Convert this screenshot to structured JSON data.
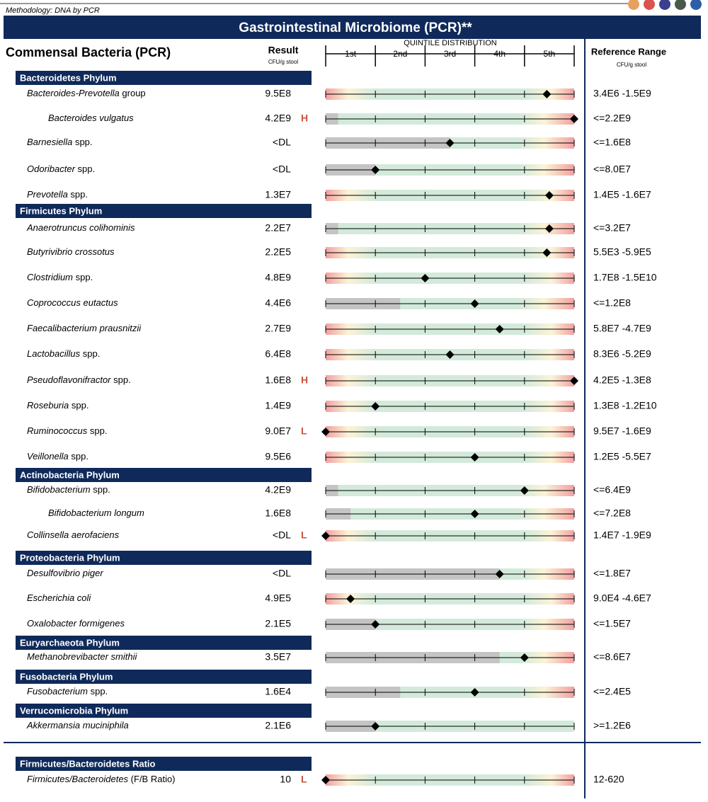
{
  "methodology": "Methodology: DNA by PCR",
  "title": "Gastrointestinal Microbiome (PCR)**",
  "panel_title": "Commensal Bacteria (PCR)",
  "result_header": "Result",
  "result_unit": "CFU/g stool",
  "quintile_header": "QUINTILE DISTRIBUTION",
  "quintiles": [
    "1st",
    "2nd",
    "3rd",
    "4th",
    "5th"
  ],
  "range_header": "Reference Range",
  "range_unit": "CFU/g stool",
  "dot_colors": [
    "#e8a060",
    "#d9534f",
    "#3a3f8f",
    "#4a5a4a",
    "#2d5fa8"
  ],
  "sections": [
    {
      "title": "Bacteroidetes Phylum",
      "rows": [
        {
          "name": "Bacteroides-Prevotella",
          "suffix": " group",
          "result": "9.5E8",
          "range": "3.4E6 -1.5E9",
          "scale": "range",
          "position": 4.45
        },
        {
          "name": "Bacteroides vulgatus",
          "indent": true,
          "result": "4.2E9",
          "flag": "H",
          "range": "<=2.2E9",
          "scale": "upper",
          "position": 5,
          "gray": 0.25
        },
        {
          "name": "Barnesiella",
          "suffix": " spp.",
          "result": "<DL",
          "range": "<=1.6E8",
          "scale": "upper",
          "position": 2.5,
          "gray": 2.5
        },
        {
          "name": "Odoribacter",
          "suffix": " spp.",
          "result": "<DL",
          "range": "<=8.0E7",
          "scale": "upper",
          "position": 1,
          "gray": 1
        },
        {
          "name": "Prevotella",
          "suffix": " spp.",
          "result": "1.3E7",
          "range": "1.4E5 -1.6E7",
          "scale": "range",
          "position": 4.5
        }
      ]
    },
    {
      "title": "Firmicutes Phylum",
      "rows": [
        {
          "name": "Anaerotruncus colihominis",
          "result": "2.2E7",
          "range": "<=3.2E7",
          "scale": "upper",
          "position": 4.5,
          "gray": 0.25
        },
        {
          "name": "Butyrivibrio crossotus",
          "result": "2.2E5",
          "range": "5.5E3 -5.9E5",
          "scale": "range",
          "position": 4.45
        },
        {
          "name": "Clostridium",
          "suffix": " spp.",
          "result": "4.8E9",
          "range": "1.7E8 -1.5E10",
          "scale": "range",
          "position": 2
        },
        {
          "name": "Coprococcus eutactus",
          "result": "4.4E6",
          "range": "<=1.2E8",
          "scale": "upper",
          "position": 3,
          "gray": 1.5
        },
        {
          "name": "Faecalibacterium prausnitzii",
          "result": "2.7E9",
          "range": "5.8E7 -4.7E9",
          "scale": "range",
          "position": 3.5
        },
        {
          "name": "Lactobacillus",
          "suffix": " spp.",
          "result": "6.4E8",
          "range": "8.3E6 -5.2E9",
          "scale": "range",
          "position": 2.5
        },
        {
          "name": "Pseudoflavonifractor",
          "suffix": " spp.",
          "result": "1.6E8",
          "flag": "H",
          "range": "4.2E5 -1.3E8",
          "scale": "range",
          "position": 5
        },
        {
          "name": "Roseburia",
          "suffix": " spp.",
          "result": "1.4E9",
          "range": "1.3E8 -1.2E10",
          "scale": "range",
          "position": 1
        },
        {
          "name": "Ruminococcus",
          "suffix": " spp.",
          "result": "9.0E7",
          "flag": "L",
          "range": "9.5E7 -1.6E9",
          "scale": "range",
          "position": 0
        },
        {
          "name": "Veillonella",
          "suffix": " spp.",
          "result": "9.5E6",
          "range": "1.2E5 -5.5E7",
          "scale": "range",
          "position": 3
        }
      ]
    },
    {
      "title": "Actinobacteria Phylum",
      "rows": [
        {
          "name": "Bifidobacterium",
          "suffix": " spp.",
          "result": "4.2E9",
          "range": "<=6.4E9",
          "scale": "upper",
          "position": 4,
          "gray": 0.25
        },
        {
          "name": "Bifidobacterium longum",
          "indent": true,
          "result": "1.6E8",
          "range": "<=7.2E8",
          "scale": "upper",
          "position": 3,
          "gray": 0.5
        },
        {
          "name": "Collinsella aerofaciens",
          "result": "<DL",
          "flag": "L",
          "range": "1.4E7 -1.9E9",
          "scale": "range",
          "position": 0
        }
      ]
    },
    {
      "title": "Proteobacteria Phylum",
      "rows": [
        {
          "name": "Desulfovibrio piger",
          "result": "<DL",
          "range": "<=1.8E7",
          "scale": "upper",
          "position": 3.5,
          "gray": 3.5
        },
        {
          "name": "Escherichia coli",
          "result": "4.9E5",
          "range": "9.0E4 -4.6E7",
          "scale": "range",
          "position": 0.5
        },
        {
          "name": "Oxalobacter formigenes",
          "result": "2.1E5",
          "range": "<=1.5E7",
          "scale": "upper",
          "position": 1,
          "gray": 1
        }
      ]
    },
    {
      "title": "Euryarchaeota Phylum",
      "rows": [
        {
          "name": "Methanobrevibacter smithii",
          "result": "3.5E7",
          "range": "<=8.6E7",
          "scale": "upper",
          "position": 4,
          "gray": 3.5
        }
      ]
    },
    {
      "title": "Fusobacteria Phylum",
      "rows": [
        {
          "name": "Fusobacterium",
          "suffix": " spp.",
          "result": "1.6E4",
          "range": "<=2.4E5",
          "scale": "upper",
          "position": 3,
          "gray": 1.5
        }
      ]
    },
    {
      "title": "Verrucomicrobia Phylum",
      "rows": [
        {
          "name": "Akkermansia muciniphila",
          "result": "2.1E6",
          "range": ">=1.2E6",
          "scale": "lower",
          "position": 1,
          "gray": 1
        }
      ]
    },
    {
      "title": "Firmicutes/Bacteroidetes Ratio",
      "rows": [
        {
          "name": "Firmicutes/Bacteroidetes",
          "suffix": " (F/B Ratio)",
          "result": "10",
          "flag": "L",
          "range": "12-620",
          "scale": "range",
          "position": 0
        }
      ]
    }
  ]
}
